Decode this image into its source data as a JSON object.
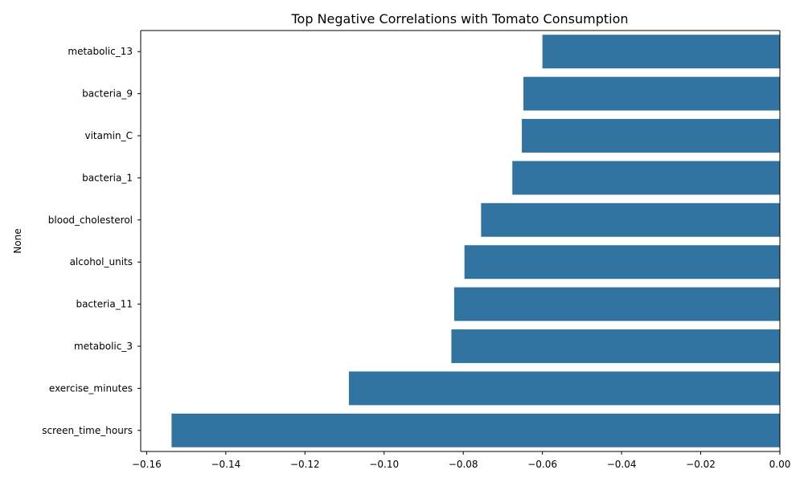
{
  "chart_data": {
    "type": "bar",
    "orientation": "horizontal",
    "title": "Top Negative Correlations with Tomato Consumption",
    "ylabel": "None",
    "xlabel": "",
    "categories": [
      "metabolic_13",
      "bacteria_9",
      "vitamin_C",
      "bacteria_1",
      "blood_cholesterol",
      "alcohol_units",
      "bacteria_11",
      "metabolic_3",
      "exercise_minutes",
      "screen_time_hours"
    ],
    "values": [
      -0.06,
      -0.0648,
      -0.0652,
      -0.0676,
      -0.0755,
      -0.0797,
      -0.0823,
      -0.083,
      -0.1089,
      -0.1537
    ],
    "xlim": [
      -0.1615,
      0.0
    ],
    "xticks": [
      -0.16,
      -0.14,
      -0.12,
      -0.1,
      -0.08,
      -0.06,
      -0.04,
      -0.02,
      0.0
    ],
    "xtick_labels": [
      "−0.16",
      "−0.14",
      "−0.12",
      "−0.10",
      "−0.08",
      "−0.06",
      "−0.04",
      "−0.02",
      "0.00"
    ],
    "bar_color": "#3274a1",
    "grid": false,
    "legend": "none"
  }
}
